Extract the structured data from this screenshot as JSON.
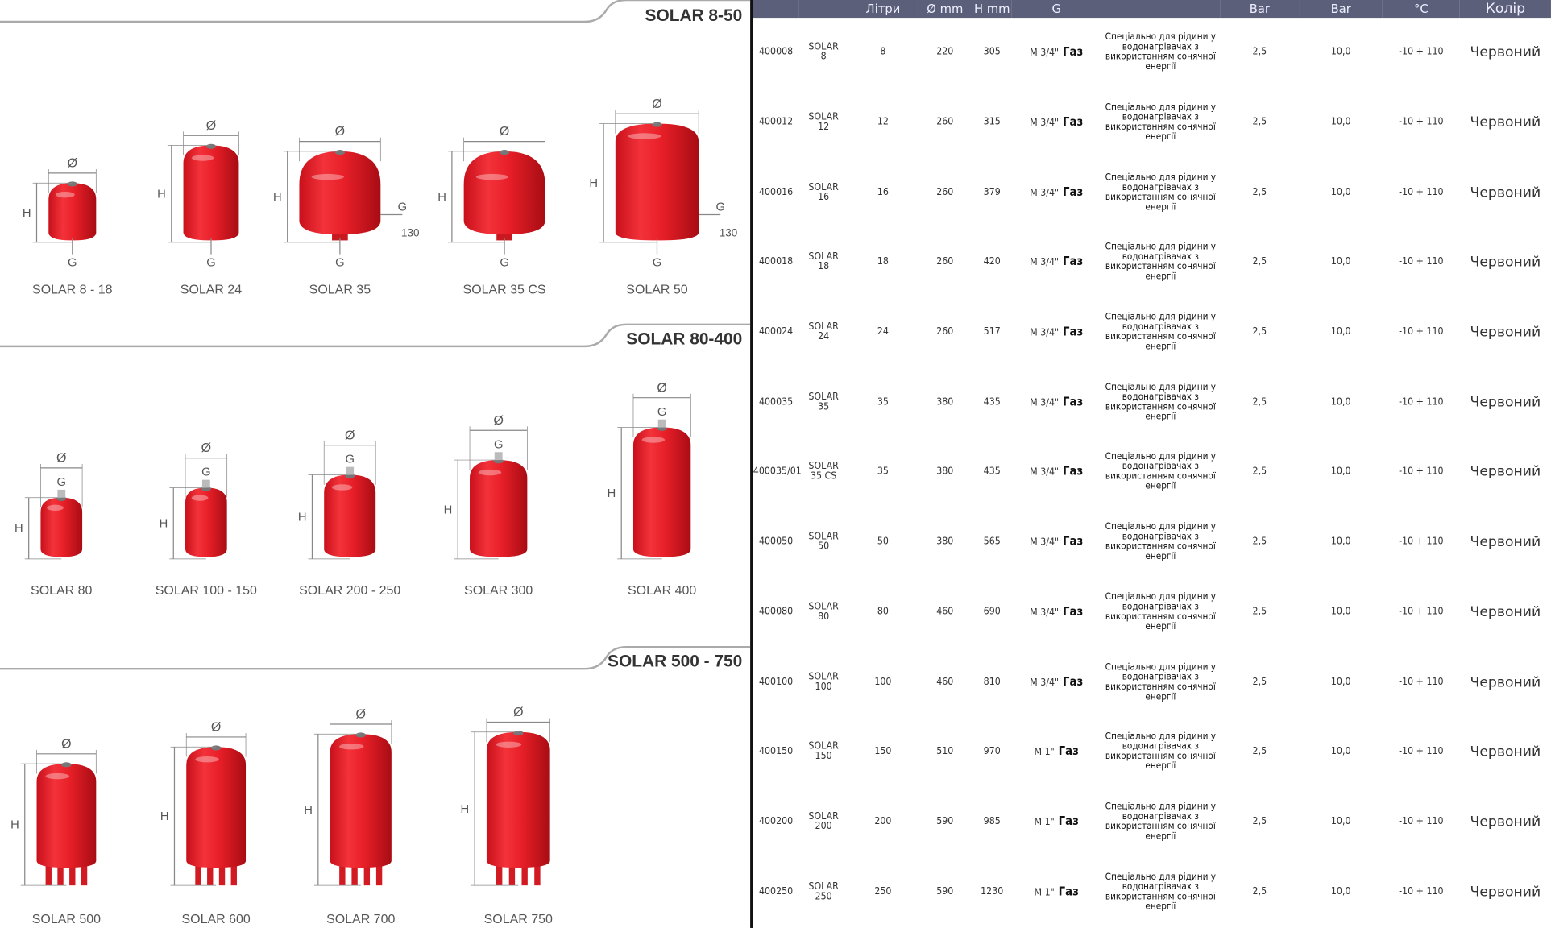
{
  "sections": [
    {
      "title": "SOLAR 8-50",
      "products": [
        {
          "label": "SOLAR 8 - 18",
          "dims": {
            "diameter": "Ø",
            "height": "H",
            "connection": "G"
          }
        },
        {
          "label": "SOLAR 24",
          "dims": {
            "diameter": "Ø",
            "height": "H",
            "connection": "G"
          }
        },
        {
          "label": "SOLAR 35",
          "dims": {
            "diameter": "Ø",
            "height": "H",
            "connection": "G",
            "offset": "130"
          }
        },
        {
          "label": "SOLAR 35 CS",
          "dims": {
            "diameter": "Ø",
            "height": "H",
            "connection": "G"
          }
        },
        {
          "label": "SOLAR 50",
          "dims": {
            "diameter": "Ø",
            "height": "H",
            "connection": "G",
            "offset": "130"
          }
        }
      ]
    },
    {
      "title": "SOLAR 80-400",
      "products": [
        {
          "label": "SOLAR 80",
          "dims": {
            "diameter": "Ø",
            "height": "H",
            "connection": "G"
          }
        },
        {
          "label": "SOLAR 100 - 150",
          "dims": {
            "diameter": "Ø",
            "height": "H",
            "connection": "G"
          }
        },
        {
          "label": "SOLAR 200 - 250",
          "dims": {
            "diameter": "Ø",
            "height": "H",
            "connection": "G"
          }
        },
        {
          "label": "SOLAR 300",
          "dims": {
            "diameter": "Ø",
            "height": "H",
            "connection": "G"
          }
        },
        {
          "label": "SOLAR 400",
          "dims": {
            "diameter": "Ø",
            "height": "H",
            "connection": "G"
          }
        }
      ]
    },
    {
      "title": "SOLAR 500 - 750",
      "products": [
        {
          "label": "SOLAR 500",
          "dims": {
            "diameter": "Ø",
            "height": "H"
          }
        },
        {
          "label": "SOLAR 600",
          "dims": {
            "diameter": "Ø",
            "height": "H"
          }
        },
        {
          "label": "SOLAR 700",
          "dims": {
            "diameter": "Ø",
            "height": "H"
          }
        },
        {
          "label": "SOLAR 750",
          "dims": {
            "diameter": "Ø",
            "height": "H"
          }
        }
      ]
    }
  ],
  "table": {
    "header": {
      "liters": "Літри",
      "diameter": "Ø mm",
      "height": "H mm",
      "connection": "G",
      "precharge": "Bar",
      "max_pressure": "Bar",
      "temperature": "°C",
      "color": "Колір"
    },
    "rows": [
      {
        "code": "400008",
        "model": "SOLAR 8",
        "liters": "8",
        "diameter": "220",
        "height": "305",
        "thread": "M 3/4\"",
        "gas": "Газ",
        "description": "Спеціально для рідини у водонагрівачах з використанням сонячної енергії",
        "precharge": "2,5",
        "max_pressure": "10,0",
        "temperature": "-10 + 110",
        "color": "Червоний"
      },
      {
        "code": "400012",
        "model": "SOLAR 12",
        "liters": "12",
        "diameter": "260",
        "height": "315",
        "thread": "M 3/4\"",
        "gas": "Газ",
        "description": "Спеціально для рідини у водонагрівачах з використанням сонячної енергії",
        "precharge": "2,5",
        "max_pressure": "10,0",
        "temperature": "-10 + 110",
        "color": "Червоний"
      },
      {
        "code": "400016",
        "model": "SOLAR 16",
        "liters": "16",
        "diameter": "260",
        "height": "379",
        "thread": "M 3/4\"",
        "gas": "Газ",
        "description": "Спеціально для рідини у водонагрівачах з використанням сонячної енергії",
        "precharge": "2,5",
        "max_pressure": "10,0",
        "temperature": "-10 + 110",
        "color": "Червоний"
      },
      {
        "code": "400018",
        "model": "SOLAR 18",
        "liters": "18",
        "diameter": "260",
        "height": "420",
        "thread": "M 3/4\"",
        "gas": "Газ",
        "description": "Спеціально для рідини у водонагрівачах з використанням сонячної енергії",
        "precharge": "2,5",
        "max_pressure": "10,0",
        "temperature": "-10 + 110",
        "color": "Червоний"
      },
      {
        "code": "400024",
        "model": "SOLAR 24",
        "liters": "24",
        "diameter": "260",
        "height": "517",
        "thread": "M 3/4\"",
        "gas": "Газ",
        "description": "Спеціально для рідини у водонагрівачах з використанням сонячної енергії",
        "precharge": "2,5",
        "max_pressure": "10,0",
        "temperature": "-10 + 110",
        "color": "Червоний"
      },
      {
        "code": "400035",
        "model": "SOLAR 35",
        "liters": "35",
        "diameter": "380",
        "height": "435",
        "thread": "M 3/4\"",
        "gas": "Газ",
        "description": "Спеціально для рідини у водонагрівачах з використанням сонячної енергії",
        "precharge": "2,5",
        "max_pressure": "10,0",
        "temperature": "-10 + 110",
        "color": "Червоний"
      },
      {
        "code": "400035/01",
        "model": "SOLAR 35 CS",
        "liters": "35",
        "diameter": "380",
        "height": "435",
        "thread": "M 3/4\"",
        "gas": "Газ",
        "description": "Спеціально для рідини у водонагрівачах з використанням сонячної енергії",
        "precharge": "2,5",
        "max_pressure": "10,0",
        "temperature": "-10 + 110",
        "color": "Червоний"
      },
      {
        "code": "400050",
        "model": "SOLAR 50",
        "liters": "50",
        "diameter": "380",
        "height": "565",
        "thread": "M 3/4\"",
        "gas": "Газ",
        "description": "Спеціально для рідини у водонагрівачах з використанням сонячної енергії",
        "precharge": "2,5",
        "max_pressure": "10,0",
        "temperature": "-10 + 110",
        "color": "Червоний"
      },
      {
        "code": "400080",
        "model": "SOLAR 80",
        "liters": "80",
        "diameter": "460",
        "height": "690",
        "thread": "M 3/4\"",
        "gas": "Газ",
        "description": "Спеціально для рідини у водонагрівачах з використанням сонячної енергії",
        "precharge": "2,5",
        "max_pressure": "10,0",
        "temperature": "-10 + 110",
        "color": "Червоний"
      },
      {
        "code": "400100",
        "model": "SOLAR 100",
        "liters": "100",
        "diameter": "460",
        "height": "810",
        "thread": "M 3/4\"",
        "gas": "Газ",
        "description": "Спеціально для рідини у водонагрівачах з використанням сонячної енергії",
        "precharge": "2,5",
        "max_pressure": "10,0",
        "temperature": "-10 + 110",
        "color": "Червоний"
      },
      {
        "code": "400150",
        "model": "SOLAR 150",
        "liters": "150",
        "diameter": "510",
        "height": "970",
        "thread": "M 1\"",
        "gas": "Газ",
        "description": "Спеціально для рідини у водонагрівачах з використанням сонячної енергії",
        "precharge": "2,5",
        "max_pressure": "10,0",
        "temperature": "-10 + 110",
        "color": "Червоний"
      },
      {
        "code": "400200",
        "model": "SOLAR 200",
        "liters": "200",
        "diameter": "590",
        "height": "985",
        "thread": "M 1\"",
        "gas": "Газ",
        "description": "Спеціально для рідини у водонагрівачах з використанням сонячної енергії",
        "precharge": "2,5",
        "max_pressure": "10,0",
        "temperature": "-10 + 110",
        "color": "Червоний"
      },
      {
        "code": "400250",
        "model": "SOLAR 250",
        "liters": "250",
        "diameter": "590",
        "height": "1230",
        "thread": "M 1\"",
        "gas": "Газ",
        "description": "Спеціально для рідини у водонагрівачах з використанням сонячної енергії",
        "precharge": "2,5",
        "max_pressure": "10,0",
        "temperature": "-10 + 110",
        "color": "Червоний"
      }
    ]
  }
}
